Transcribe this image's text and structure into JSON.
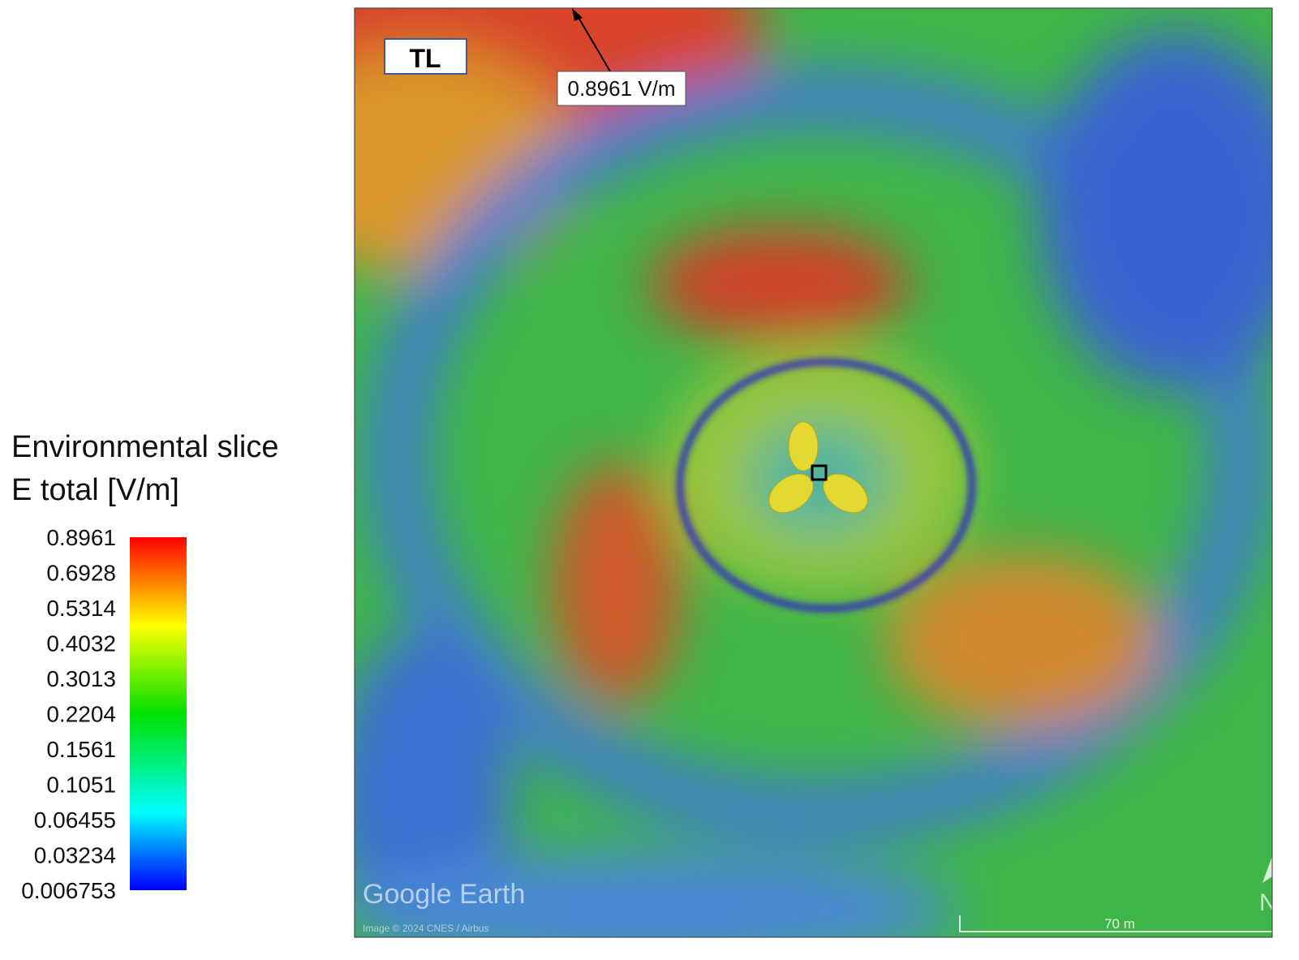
{
  "legend": {
    "title_lines": [
      "Environmental slice",
      "E total [V/m]"
    ],
    "labels": [
      "0.8961",
      "0.6928",
      "0.5314",
      "0.4032",
      "0.3013",
      "0.2204",
      "0.1561",
      "0.1051",
      "0.06455",
      "0.03234",
      "0.006753"
    ]
  },
  "map": {
    "badge": "TL",
    "annotation": "0.8961 V/m",
    "watermark": "Google Earth",
    "credit": "Image © 2024 CNES / Airbus",
    "scale": "70 m",
    "compass": "N"
  }
}
